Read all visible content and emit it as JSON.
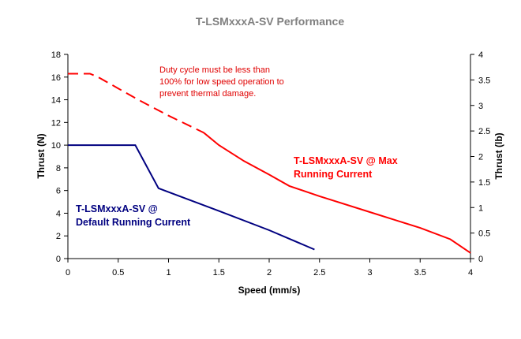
{
  "chart_data": {
    "type": "line",
    "title": "T-LSMxxxA-SV Performance",
    "xlabel": "Speed (mm/s)",
    "ylabel": "Thrust (N)",
    "y2label": "Thrust (lb)",
    "xlim": [
      0,
      4
    ],
    "ylim": [
      0,
      18
    ],
    "y2lim": [
      0,
      4
    ],
    "grid": false,
    "xticks": [
      "0",
      "0.5",
      "1",
      "1.5",
      "2",
      "2.5",
      "3",
      "3.5",
      "4"
    ],
    "xtick_values": [
      0,
      0.5,
      1,
      1.5,
      2,
      2.5,
      3,
      3.5,
      4
    ],
    "yticks": [
      "0",
      "2",
      "4",
      "6",
      "8",
      "10",
      "12",
      "14",
      "16",
      "18"
    ],
    "ytick_values": [
      0,
      2,
      4,
      6,
      8,
      10,
      12,
      14,
      16,
      18
    ],
    "y2ticks": [
      "0",
      "0.5",
      "1",
      "1.5",
      "2",
      "2.5",
      "3",
      "3.5",
      "4"
    ],
    "y2tick_values": [
      0,
      0.5,
      1,
      1.5,
      2,
      2.5,
      3,
      3.5,
      4
    ],
    "series": [
      {
        "label_lines": [
          "T-LSMxxxA-SV @ Max",
          "Running Current"
        ],
        "color": "#ff0000",
        "dashed_segment": {
          "x": [
            0,
            0.22,
            0.3,
            0.5,
            0.7,
            1.0,
            1.35
          ],
          "y": [
            16.3,
            16.3,
            16.0,
            15.0,
            14.0,
            12.6,
            11.1
          ]
        },
        "solid_segment": {
          "x": [
            1.35,
            1.5,
            1.75,
            2.0,
            2.2,
            2.5,
            3.0,
            3.5,
            3.8,
            4.0
          ],
          "y": [
            11.1,
            10.0,
            8.6,
            7.4,
            6.4,
            5.5,
            4.1,
            2.7,
            1.7,
            0.5
          ]
        }
      },
      {
        "label_lines": [
          "T-LSMxxxA-SV @",
          "Default Running Current"
        ],
        "color": "#000080",
        "x": [
          0,
          0.67,
          0.9,
          1.5,
          2.0,
          2.45
        ],
        "y": [
          10,
          10,
          6.2,
          4.2,
          2.5,
          0.8
        ]
      }
    ],
    "annotation": [
      "Duty cycle must be less than",
      "100% for low speed operation to",
      "prevent thermal damage."
    ]
  }
}
